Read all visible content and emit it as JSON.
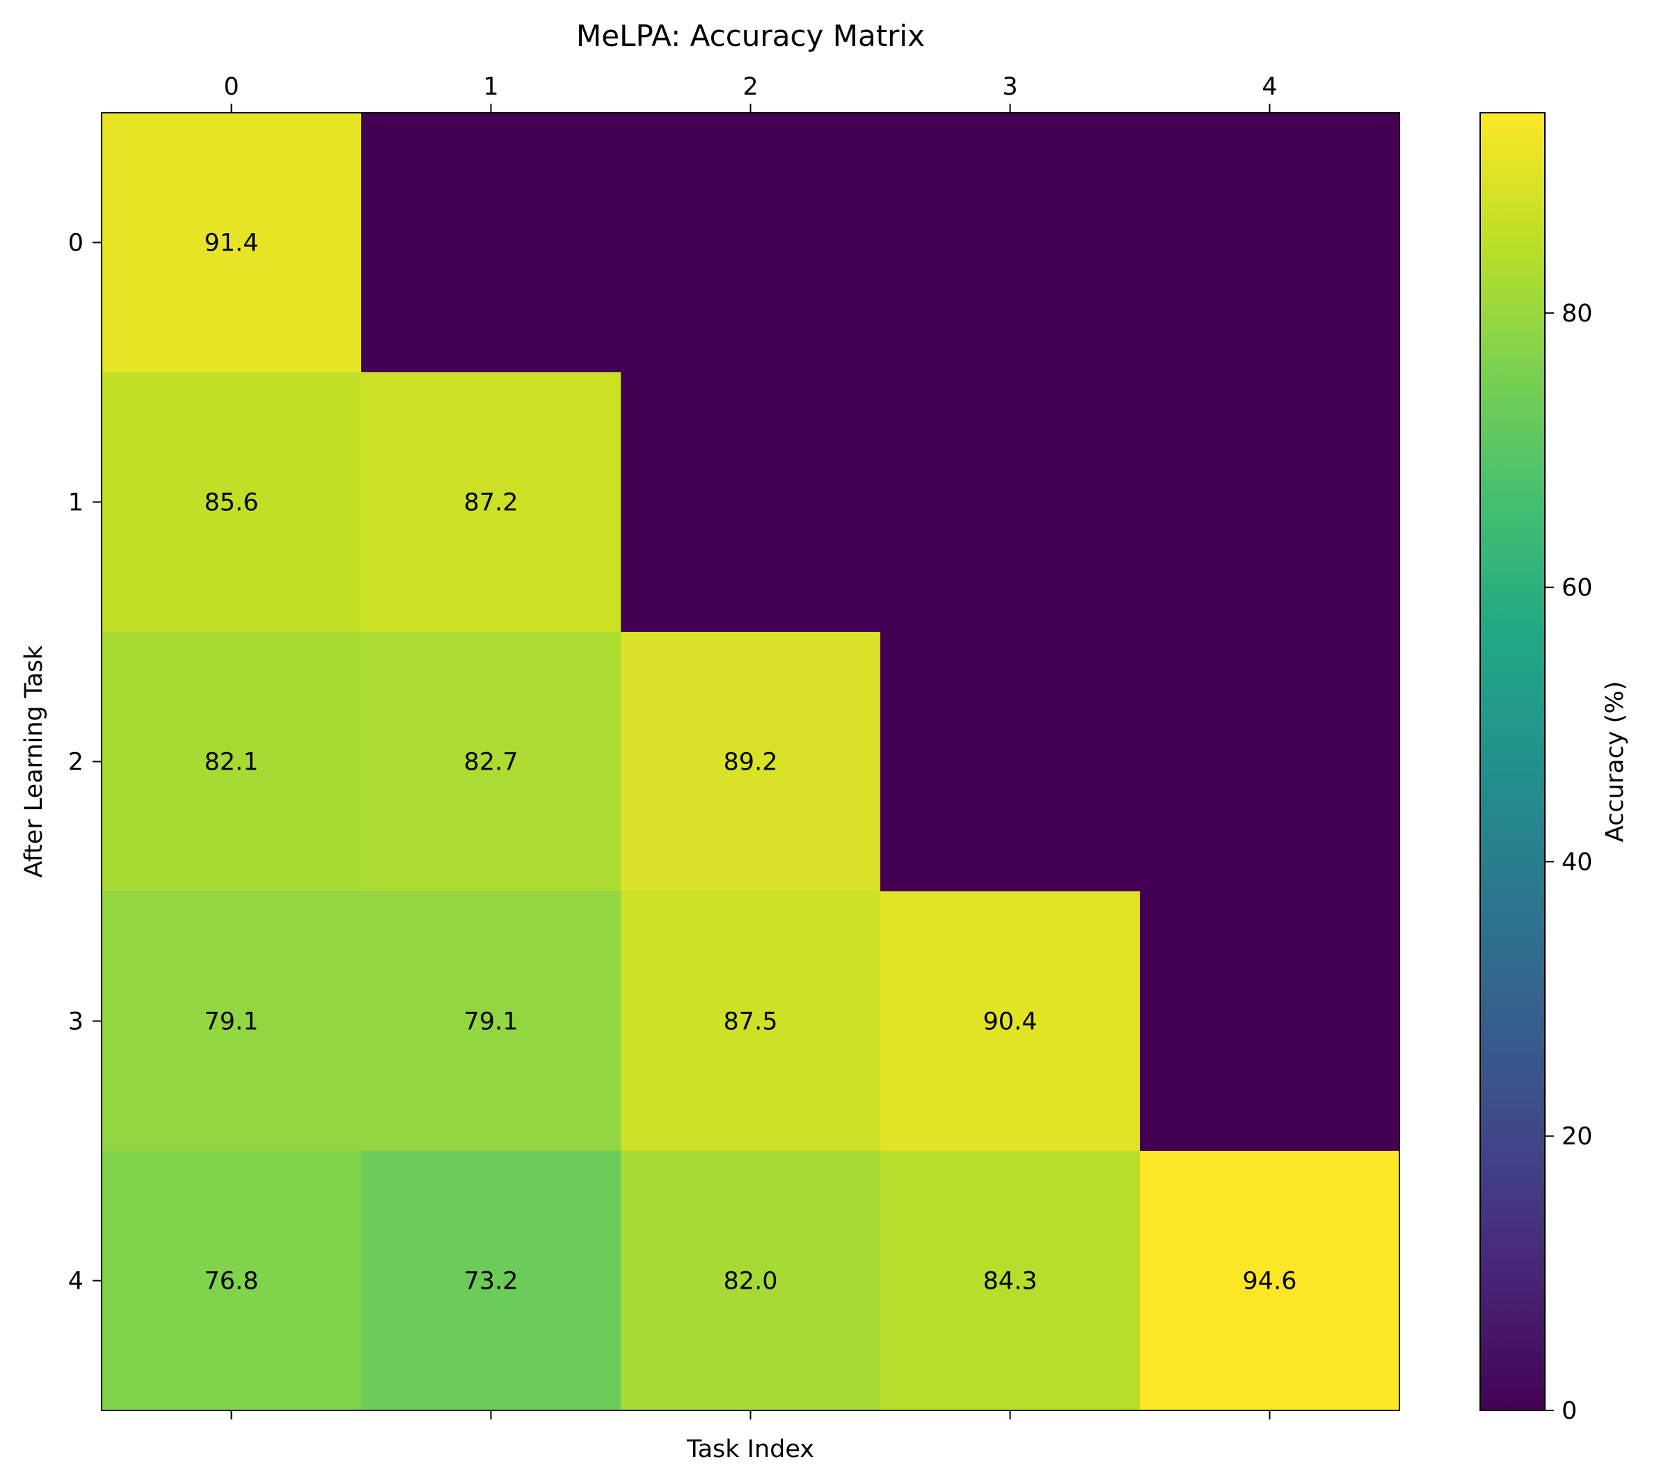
{
  "chart_data": {
    "type": "heatmap",
    "title": "MeLPA: Accuracy Matrix",
    "xlabel": "Task Index",
    "ylabel": "After Learning Task",
    "x_categories": [
      "0",
      "1",
      "2",
      "3",
      "4"
    ],
    "y_categories": [
      "0",
      "1",
      "2",
      "3",
      "4"
    ],
    "x_axis_position": "top-labels-with-bottom-ticks",
    "values": [
      [
        91.4,
        0,
        0,
        0,
        0
      ],
      [
        85.6,
        87.2,
        0,
        0,
        0
      ],
      [
        82.1,
        82.7,
        89.2,
        0,
        0
      ],
      [
        79.1,
        79.1,
        87.5,
        90.4,
        0
      ],
      [
        76.8,
        73.2,
        82.0,
        84.3,
        94.6
      ]
    ],
    "cell_labels": [
      [
        "91.4",
        "",
        "",
        "",
        ""
      ],
      [
        "85.6",
        "87.2",
        "",
        "",
        ""
      ],
      [
        "82.1",
        "82.7",
        "89.2",
        "",
        ""
      ],
      [
        "79.1",
        "79.1",
        "87.5",
        "90.4",
        ""
      ],
      [
        "76.8",
        "73.2",
        "82.0",
        "84.3",
        "94.6"
      ]
    ],
    "color_range": [
      0,
      94.6
    ],
    "colormap": "viridis",
    "colorbar": {
      "label": "Accuracy (%)",
      "ticks": [
        0,
        20,
        40,
        60,
        80
      ],
      "tick_labels": [
        "0",
        "20",
        "40",
        "60",
        "80"
      ]
    },
    "grid": false
  }
}
